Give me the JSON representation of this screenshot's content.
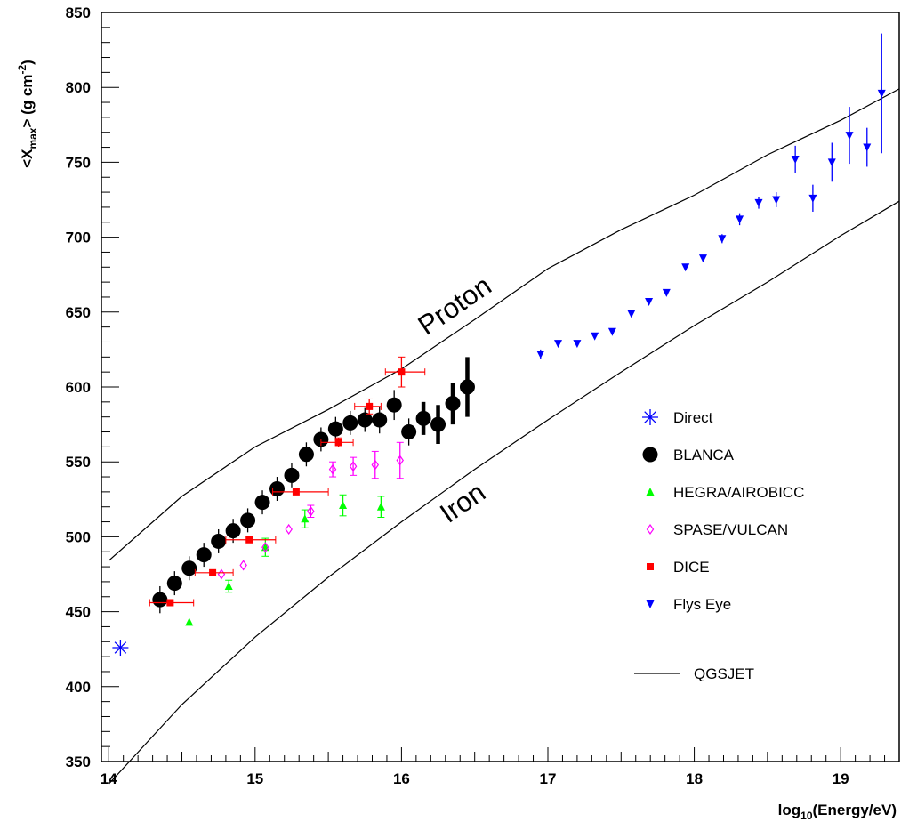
{
  "chart_data": {
    "type": "scatter",
    "title": "",
    "xlabel": {
      "base": "log",
      "sub": "10",
      "rest": "(Energy/eV)"
    },
    "ylabel": {
      "open": "<X",
      "sub": "max",
      "close": ">  (g  cm",
      "sup": "-2",
      "end": ")"
    },
    "xlim": [
      13.95,
      19.4
    ],
    "ylim": [
      350,
      850
    ],
    "x_ticks": [
      14,
      15,
      16,
      17,
      18,
      19
    ],
    "y_ticks": [
      350,
      400,
      450,
      500,
      550,
      600,
      650,
      700,
      750,
      800,
      850
    ],
    "grid": false,
    "legend_position": "right",
    "series": [
      {
        "name": "Direct",
        "marker": "asterisk",
        "color": "#0000ff",
        "points": [
          {
            "x": 14.08,
            "y": 426
          }
        ]
      },
      {
        "name": "BLANCA",
        "marker": "circle",
        "color": "#000000",
        "points": [
          {
            "x": 14.35,
            "y": 458,
            "err": 9
          },
          {
            "x": 14.45,
            "y": 469,
            "err": 8
          },
          {
            "x": 14.55,
            "y": 479,
            "err": 8
          },
          {
            "x": 14.65,
            "y": 488,
            "err": 8
          },
          {
            "x": 14.75,
            "y": 497,
            "err": 8
          },
          {
            "x": 14.85,
            "y": 504,
            "err": 8
          },
          {
            "x": 14.95,
            "y": 511,
            "err": 8
          },
          {
            "x": 15.05,
            "y": 523,
            "err": 8
          },
          {
            "x": 15.15,
            "y": 532,
            "err": 8
          },
          {
            "x": 15.25,
            "y": 541,
            "err": 8
          },
          {
            "x": 15.35,
            "y": 555,
            "err": 8
          },
          {
            "x": 15.45,
            "y": 565,
            "err": 8
          },
          {
            "x": 15.55,
            "y": 572,
            "err": 8
          },
          {
            "x": 15.65,
            "y": 576,
            "err": 8
          },
          {
            "x": 15.75,
            "y": 578,
            "err": 8
          },
          {
            "x": 15.85,
            "y": 578,
            "err": 9
          },
          {
            "x": 15.95,
            "y": 588,
            "err": 10
          },
          {
            "x": 16.05,
            "y": 570,
            "err": 9
          },
          {
            "x": 16.15,
            "y": 579,
            "err": 11
          },
          {
            "x": 16.25,
            "y": 575,
            "err": 13
          },
          {
            "x": 16.35,
            "y": 589,
            "err": 14
          },
          {
            "x": 16.45,
            "y": 600,
            "err": 20
          }
        ]
      },
      {
        "name": "HEGRA/AIROBICC",
        "marker": "triangle-up",
        "color": "#00ff00",
        "points": [
          {
            "x": 14.55,
            "y": 443,
            "err": 0
          },
          {
            "x": 14.82,
            "y": 467,
            "err": 4
          },
          {
            "x": 15.07,
            "y": 493,
            "err": 6
          },
          {
            "x": 15.34,
            "y": 512,
            "err": 6
          },
          {
            "x": 15.6,
            "y": 521,
            "err": 7
          },
          {
            "x": 15.86,
            "y": 520,
            "err": 7
          }
        ]
      },
      {
        "name": "SPASE/VULCAN",
        "marker": "diamond-open",
        "color": "#ff00ff",
        "points": [
          {
            "x": 14.77,
            "y": 475,
            "err": 0
          },
          {
            "x": 14.92,
            "y": 481,
            "err": 0
          },
          {
            "x": 15.07,
            "y": 493,
            "err": 0
          },
          {
            "x": 15.23,
            "y": 505,
            "err": 0
          },
          {
            "x": 15.38,
            "y": 517,
            "err": 4
          },
          {
            "x": 15.53,
            "y": 545,
            "err": 5
          },
          {
            "x": 15.67,
            "y": 547,
            "err": 6
          },
          {
            "x": 15.82,
            "y": 548,
            "err": 9
          },
          {
            "x": 15.99,
            "y": 551,
            "err": 12
          }
        ]
      },
      {
        "name": "DICE",
        "marker": "square",
        "color": "#ff0000",
        "points": [
          {
            "x": 14.42,
            "y": 456,
            "err": 0,
            "xerr": [
              0.14,
              0.16
            ]
          },
          {
            "x": 14.71,
            "y": 476,
            "err": 0,
            "xerr": [
              0.12,
              0.14
            ]
          },
          {
            "x": 14.96,
            "y": 498,
            "err": 0,
            "xerr": [
              0.16,
              0.18
            ]
          },
          {
            "x": 15.28,
            "y": 530,
            "err": 0,
            "xerr": [
              0.16,
              0.22
            ]
          },
          {
            "x": 15.57,
            "y": 563,
            "err": 3,
            "xerr": [
              0.12,
              0.1
            ]
          },
          {
            "x": 15.78,
            "y": 587,
            "err": 5,
            "xerr": [
              0.1,
              0.08
            ]
          },
          {
            "x": 16.0,
            "y": 610,
            "err": 10,
            "xerr": [
              0.11,
              0.16
            ]
          }
        ]
      },
      {
        "name": "Flys Eye",
        "marker": "triangle-down",
        "color": "#0000ff",
        "points": [
          {
            "x": 16.95,
            "y": 622,
            "err": 3
          },
          {
            "x": 17.07,
            "y": 629,
            "err": 2
          },
          {
            "x": 17.2,
            "y": 629,
            "err": 2
          },
          {
            "x": 17.32,
            "y": 634,
            "err": 2
          },
          {
            "x": 17.44,
            "y": 637,
            "err": 2
          },
          {
            "x": 17.57,
            "y": 649,
            "err": 2
          },
          {
            "x": 17.69,
            "y": 657,
            "err": 2
          },
          {
            "x": 17.81,
            "y": 663,
            "err": 2
          },
          {
            "x": 17.94,
            "y": 680,
            "err": 2
          },
          {
            "x": 18.06,
            "y": 686,
            "err": 2
          },
          {
            "x": 18.19,
            "y": 699,
            "err": 3
          },
          {
            "x": 18.31,
            "y": 712,
            "err": 4
          },
          {
            "x": 18.44,
            "y": 723,
            "err": 4
          },
          {
            "x": 18.56,
            "y": 725,
            "err": 5
          },
          {
            "x": 18.69,
            "y": 752,
            "err": 9
          },
          {
            "x": 18.81,
            "y": 726,
            "err": 9
          },
          {
            "x": 18.94,
            "y": 750,
            "err": 13
          },
          {
            "x": 19.06,
            "y": 768,
            "err": 19
          },
          {
            "x": 19.18,
            "y": 760,
            "err": 13
          },
          {
            "x": 19.28,
            "y": 796,
            "err": 40
          }
        ]
      }
    ],
    "curves": [
      {
        "name": "Proton",
        "points": [
          [
            14.0,
            484
          ],
          [
            14.5,
            527
          ],
          [
            15.0,
            560
          ],
          [
            15.5,
            585
          ],
          [
            16.0,
            612
          ],
          [
            16.5,
            645
          ],
          [
            17.0,
            679
          ],
          [
            17.5,
            705
          ],
          [
            18.0,
            728
          ],
          [
            18.5,
            755
          ],
          [
            19.0,
            778
          ],
          [
            19.4,
            799
          ]
        ]
      },
      {
        "name": "Iron",
        "points": [
          [
            14.0,
            335
          ],
          [
            14.5,
            388
          ],
          [
            15.0,
            433
          ],
          [
            15.5,
            473
          ],
          [
            16.0,
            510
          ],
          [
            16.5,
            545
          ],
          [
            17.0,
            578
          ],
          [
            17.5,
            610
          ],
          [
            18.0,
            641
          ],
          [
            18.5,
            670
          ],
          [
            19.0,
            701
          ],
          [
            19.4,
            724
          ]
        ]
      }
    ],
    "model_legend": "QGSJET"
  }
}
